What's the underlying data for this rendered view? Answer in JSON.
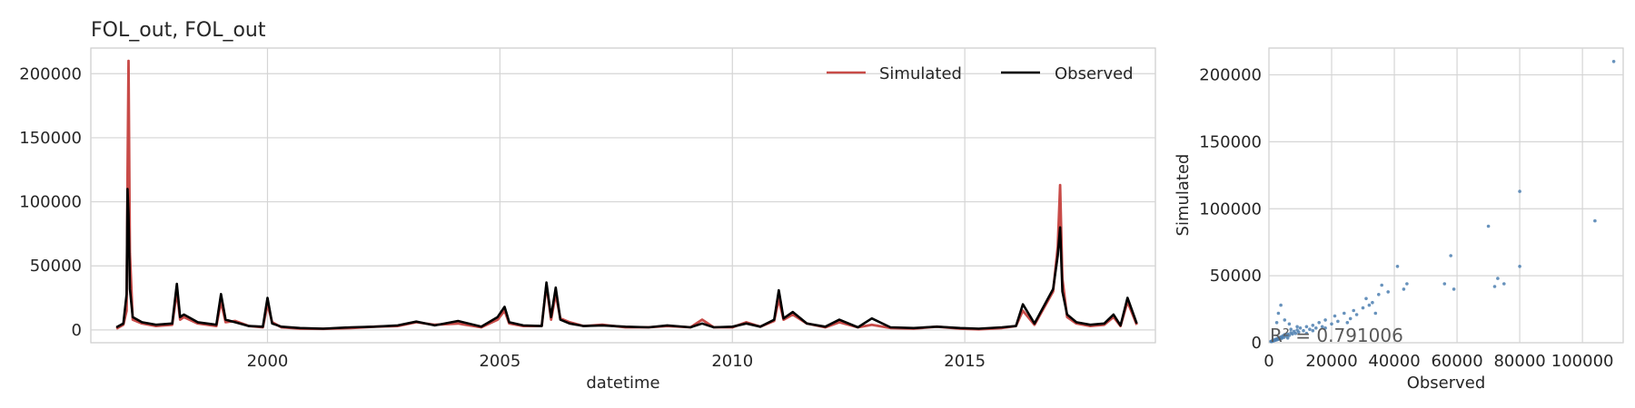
{
  "chart_data": [
    {
      "type": "line",
      "title": "FOL_out, FOL_out",
      "xlabel": "datetime",
      "ylabel": "",
      "xlim": [
        1996.2,
        2019.1
      ],
      "ylim": [
        -10000,
        220000
      ],
      "x_ticks": [
        {
          "value": 2000,
          "label": "2000"
        },
        {
          "value": 2005,
          "label": "2005"
        },
        {
          "value": 2010,
          "label": "2010"
        },
        {
          "value": 2015,
          "label": "2015"
        }
      ],
      "y_ticks": [
        {
          "value": 0,
          "label": "0"
        },
        {
          "value": 50000,
          "label": "50000"
        },
        {
          "value": 100000,
          "label": "100000"
        },
        {
          "value": 150000,
          "label": "150000"
        },
        {
          "value": 200000,
          "label": "200000"
        }
      ],
      "grid": true,
      "legend_position": "top-right",
      "series": [
        {
          "name": "Simulated",
          "color": "#c84b48",
          "x": [
            1996.75,
            1996.9,
            1996.97,
            1996.99,
            1997.01,
            1997.04,
            1997.1,
            1997.3,
            1997.6,
            1997.95,
            1998.05,
            1998.12,
            1998.2,
            1998.5,
            1998.9,
            1999.0,
            1999.1,
            1999.3,
            1999.6,
            1999.9,
            2000.0,
            2000.1,
            2000.3,
            2000.7,
            2001.2,
            2001.8,
            2002.3,
            2002.8,
            2003.2,
            2003.6,
            2004.1,
            2004.6,
            2004.95,
            2005.1,
            2005.2,
            2005.5,
            2005.9,
            2006.0,
            2006.1,
            2006.2,
            2006.3,
            2006.5,
            2006.8,
            2007.2,
            2007.7,
            2008.2,
            2008.6,
            2009.1,
            2009.35,
            2009.6,
            2010.0,
            2010.3,
            2010.6,
            2010.9,
            2011.0,
            2011.1,
            2011.3,
            2011.6,
            2012.0,
            2012.3,
            2012.7,
            2013.0,
            2013.4,
            2013.9,
            2014.4,
            2014.9,
            2015.3,
            2015.8,
            2016.1,
            2016.25,
            2016.5,
            2016.9,
            2017.0,
            2017.05,
            2017.1,
            2017.2,
            2017.4,
            2017.7,
            2018.0,
            2018.2,
            2018.35,
            2018.5,
            2018.7
          ],
          "values": [
            1000,
            4000,
            15000,
            120000,
            210000,
            60000,
            8000,
            5000,
            3000,
            4000,
            30000,
            8000,
            10000,
            5000,
            3000,
            22000,
            6000,
            7000,
            3000,
            2000,
            20000,
            6000,
            2000,
            1000,
            800,
            1500,
            2500,
            3000,
            6000,
            4000,
            5000,
            2000,
            8000,
            15000,
            5000,
            3000,
            3000,
            35000,
            8000,
            28000,
            9000,
            6000,
            3000,
            4000,
            2000,
            2000,
            3000,
            2000,
            8000,
            2000,
            2000,
            6000,
            2500,
            7000,
            24000,
            8000,
            12000,
            5000,
            2000,
            6000,
            2000,
            4000,
            1500,
            1000,
            2500,
            1000,
            500,
            1500,
            3000,
            15000,
            4000,
            30000,
            65000,
            113000,
            40000,
            10000,
            5000,
            3000,
            4000,
            10000,
            3000,
            22000,
            4000
          ]
        },
        {
          "name": "Observed",
          "color": "#000000",
          "x": [
            1996.75,
            1996.9,
            1996.97,
            1996.99,
            1997.01,
            1997.04,
            1997.1,
            1997.3,
            1997.6,
            1997.95,
            1998.05,
            1998.12,
            1998.2,
            1998.5,
            1998.9,
            1999.0,
            1999.1,
            1999.3,
            1999.6,
            1999.9,
            2000.0,
            2000.1,
            2000.3,
            2000.7,
            2001.2,
            2001.8,
            2002.3,
            2002.8,
            2003.2,
            2003.6,
            2004.1,
            2004.6,
            2004.95,
            2005.1,
            2005.2,
            2005.5,
            2005.9,
            2006.0,
            2006.1,
            2006.2,
            2006.3,
            2006.5,
            2006.8,
            2007.2,
            2007.7,
            2008.2,
            2008.6,
            2009.1,
            2009.35,
            2009.6,
            2010.0,
            2010.3,
            2010.6,
            2010.9,
            2011.0,
            2011.1,
            2011.3,
            2011.6,
            2012.0,
            2012.3,
            2012.7,
            2013.0,
            2013.4,
            2013.9,
            2014.4,
            2014.9,
            2015.3,
            2015.8,
            2016.1,
            2016.25,
            2016.5,
            2016.9,
            2017.0,
            2017.05,
            2017.1,
            2017.2,
            2017.4,
            2017.7,
            2018.0,
            2018.2,
            2018.35,
            2018.5,
            2018.7
          ],
          "values": [
            2000,
            5000,
            28000,
            110000,
            90000,
            32000,
            10000,
            6000,
            4000,
            5000,
            36000,
            10000,
            12000,
            6000,
            4000,
            28000,
            8000,
            6000,
            3000,
            2500,
            25000,
            5000,
            2500,
            1500,
            1000,
            2000,
            2500,
            3500,
            6500,
            3500,
            7000,
            2500,
            10000,
            18000,
            6000,
            3500,
            3000,
            37000,
            10000,
            33000,
            8000,
            5000,
            3000,
            3500,
            2500,
            2000,
            3500,
            2000,
            5000,
            2000,
            2500,
            5000,
            2500,
            8000,
            31000,
            9000,
            14000,
            5000,
            2500,
            8000,
            2000,
            9000,
            2000,
            1500,
            2500,
            1500,
            1000,
            2000,
            3000,
            20000,
            5000,
            32000,
            58000,
            80000,
            30000,
            12000,
            6000,
            4000,
            5000,
            12000,
            3500,
            25000,
            5000
          ]
        }
      ]
    },
    {
      "type": "scatter",
      "title": "",
      "xlabel": "Observed",
      "ylabel": "Simulated",
      "xlim": [
        0,
        113000
      ],
      "ylim": [
        0,
        220000
      ],
      "x_ticks": [
        {
          "value": 0,
          "label": "0"
        },
        {
          "value": 20000,
          "label": "20000"
        },
        {
          "value": 40000,
          "label": "40000"
        },
        {
          "value": 60000,
          "label": "60000"
        },
        {
          "value": 80000,
          "label": "80000"
        },
        {
          "value": 100000,
          "label": "100000"
        }
      ],
      "y_ticks": [
        {
          "value": 0,
          "label": "0"
        },
        {
          "value": 50000,
          "label": "50000"
        },
        {
          "value": 100000,
          "label": "100000"
        },
        {
          "value": 150000,
          "label": "150000"
        },
        {
          "value": 200000,
          "label": "200000"
        }
      ],
      "grid": true,
      "color": "#4c7fb0",
      "annotation": "R² = 0.791006",
      "points": [
        [
          110000,
          210000
        ],
        [
          80000,
          113000
        ],
        [
          70000,
          87000
        ],
        [
          104000,
          91000
        ],
        [
          58000,
          65000
        ],
        [
          73000,
          48000
        ],
        [
          75000,
          44000
        ],
        [
          72000,
          42000
        ],
        [
          80000,
          57000
        ],
        [
          56000,
          44000
        ],
        [
          59000,
          40000
        ],
        [
          44000,
          44000
        ],
        [
          43000,
          40000
        ],
        [
          41000,
          57000
        ],
        [
          36000,
          43000
        ],
        [
          38000,
          38000
        ],
        [
          35000,
          36000
        ],
        [
          33000,
          30000
        ],
        [
          34000,
          22000
        ],
        [
          30000,
          26000
        ],
        [
          28000,
          21000
        ],
        [
          26000,
          18000
        ],
        [
          24000,
          22000
        ],
        [
          22000,
          16000
        ],
        [
          21000,
          20000
        ],
        [
          20000,
          14000
        ],
        [
          18000,
          17000
        ],
        [
          17000,
          12000
        ],
        [
          16000,
          15000
        ],
        [
          15000,
          11000
        ],
        [
          14000,
          13000
        ],
        [
          13000,
          10000
        ],
        [
          12000,
          12000
        ],
        [
          11000,
          9000
        ],
        [
          10000,
          11000
        ],
        [
          9500,
          8000
        ],
        [
          9000,
          9500
        ],
        [
          8500,
          7000
        ],
        [
          8000,
          8500
        ],
        [
          7500,
          6500
        ],
        [
          7000,
          7500
        ],
        [
          6500,
          5500
        ],
        [
          6000,
          6500
        ],
        [
          5500,
          5000
        ],
        [
          5000,
          6000
        ],
        [
          4800,
          4000
        ],
        [
          4500,
          5200
        ],
        [
          4200,
          3500
        ],
        [
          4000,
          4500
        ],
        [
          3800,
          3000
        ],
        [
          3500,
          4000
        ],
        [
          3200,
          2800
        ],
        [
          3000,
          3300
        ],
        [
          2800,
          2500
        ],
        [
          2600,
          3000
        ],
        [
          2400,
          2000
        ],
        [
          2200,
          2600
        ],
        [
          2000,
          1800
        ],
        [
          1800,
          2200
        ],
        [
          1600,
          1500
        ],
        [
          1400,
          1800
        ],
        [
          1200,
          1200
        ],
        [
          1000,
          1400
        ],
        [
          800,
          900
        ],
        [
          600,
          1000
        ],
        [
          9000,
          12000
        ],
        [
          7000,
          10000
        ],
        [
          6000,
          3500
        ],
        [
          12000,
          7000
        ],
        [
          14000,
          9000
        ],
        [
          18000,
          11000
        ],
        [
          25000,
          15000
        ],
        [
          27000,
          24000
        ],
        [
          31000,
          33000
        ],
        [
          32000,
          28000
        ],
        [
          3000,
          22000
        ],
        [
          3800,
          28000
        ],
        [
          2500,
          15000
        ],
        [
          5000,
          17000
        ],
        [
          6500,
          14000
        ]
      ]
    }
  ]
}
